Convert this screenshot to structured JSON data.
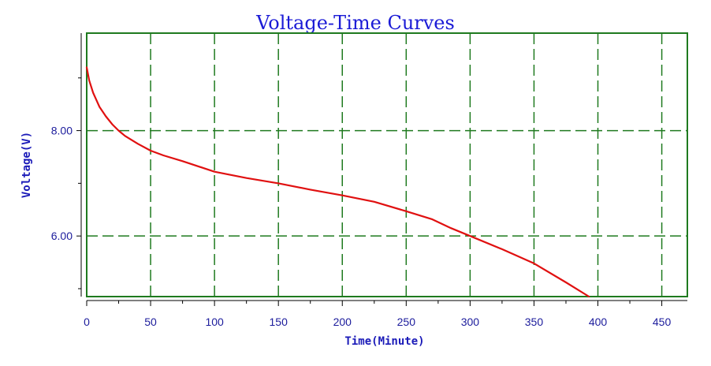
{
  "chart_data": {
    "type": "line",
    "title": "Voltage-Time Curves",
    "xlabel": "Time(Minute)",
    "ylabel": "Voltage(V)",
    "xlim": [
      0,
      470
    ],
    "ylim": [
      4.85,
      9.85
    ],
    "x_ticks": [
      0,
      50,
      100,
      150,
      200,
      250,
      300,
      350,
      400,
      450
    ],
    "x_tick_labels": [
      "0",
      "50",
      "100",
      "150",
      "200",
      "250",
      "300",
      "350",
      "400",
      "450"
    ],
    "y_ticks": [
      6.0,
      8.0
    ],
    "y_tick_labels": [
      "6.00",
      "8.00"
    ],
    "y_minor_ticks": [
      5.0,
      7.0,
      9.0
    ],
    "x_minor_step": 25,
    "grid": true,
    "colors": {
      "series": "#e01010",
      "grid": "#1f7a1f",
      "frame": "#1f7a1f",
      "axis": "#000000",
      "title": "#1b1bd6",
      "tick_labels": "#1c1c9c",
      "axis_labels": "#1a1ab8"
    },
    "series": [
      {
        "x": [
          0,
          2,
          5,
          10,
          15,
          20,
          25,
          30,
          40,
          50,
          60,
          75,
          100,
          125,
          150,
          175,
          200,
          225,
          250,
          270,
          285,
          300,
          325,
          350,
          375,
          393
        ],
        "y": [
          9.2,
          8.95,
          8.72,
          8.45,
          8.27,
          8.12,
          8.0,
          7.9,
          7.75,
          7.62,
          7.53,
          7.42,
          7.22,
          7.1,
          7.0,
          6.88,
          6.77,
          6.65,
          6.47,
          6.32,
          6.15,
          6.0,
          5.75,
          5.48,
          5.12,
          4.85
        ]
      }
    ]
  }
}
